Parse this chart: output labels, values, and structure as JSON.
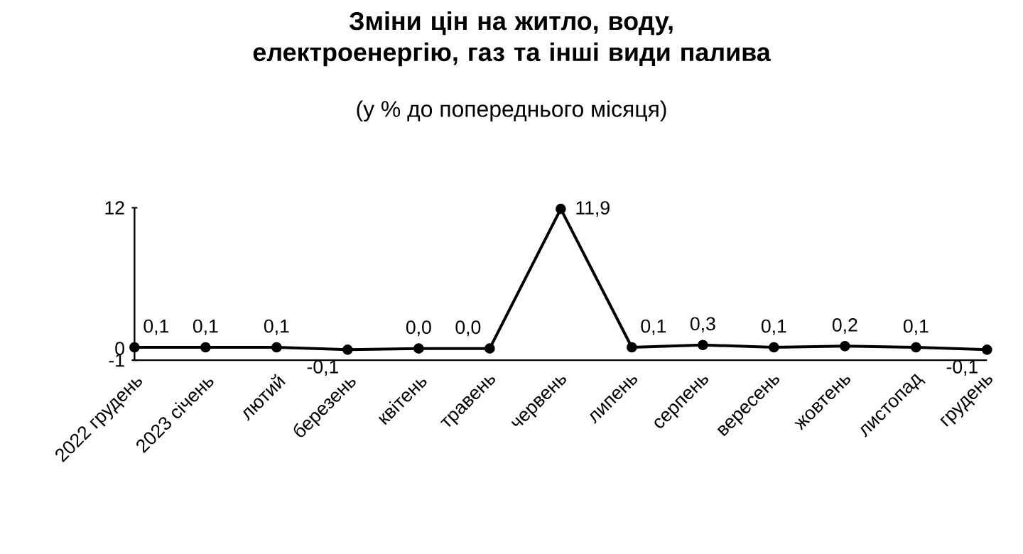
{
  "chart_data": {
    "type": "line",
    "title": "Зміни цін на житло, воду, електроенергію, газ та інші види палива",
    "subtitle": "(у % до попереднього місяця)",
    "categories": [
      "2022 грудень",
      "2023 січень",
      "лютий",
      "березень",
      "квітень",
      "травень",
      "червень",
      "липень",
      "серпень",
      "вересень",
      "жовтень",
      "листопад",
      "грудень"
    ],
    "values": [
      0.1,
      0.1,
      0.1,
      -0.1,
      0.0,
      0.0,
      11.9,
      0.1,
      0.3,
      0.1,
      0.2,
      0.1,
      -0.1
    ],
    "value_labels": [
      "0,1",
      "0,1",
      "0,1",
      "-0,1",
      "0,0",
      "0,0",
      "11,9",
      "0,1",
      "0,3",
      "0,1",
      "0,2",
      "0,1",
      "-0,1"
    ],
    "color": "#000000",
    "marker": "circle",
    "line_style": "solid",
    "grid": false,
    "ylim": [
      -1,
      12
    ],
    "yticks": [
      12,
      0,
      -1
    ]
  }
}
